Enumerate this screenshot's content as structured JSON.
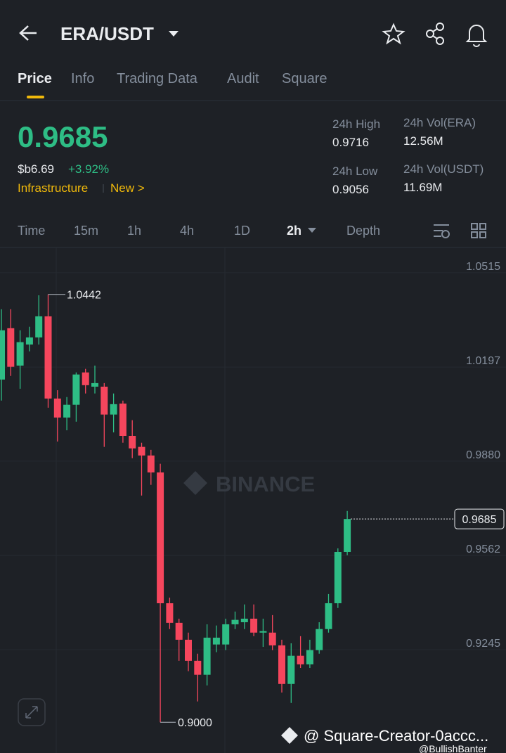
{
  "header": {
    "pair": "ERA/USDT"
  },
  "tabs": [
    "Price",
    "Info",
    "Trading Data",
    "Audit",
    "Square"
  ],
  "ticker": {
    "price": "0.9685",
    "usd_price": "$b6.69",
    "change": "+3.92%",
    "tags": [
      "Infrastructure",
      "New >"
    ]
  },
  "stats": [
    {
      "label": "24h High",
      "value": "0.9716"
    },
    {
      "label": "24h Vol(ERA)",
      "value": "12.56M"
    },
    {
      "label": "24h Low",
      "value": "0.9056"
    },
    {
      "label": "24h Vol(USDT)",
      "value": "11.69M"
    }
  ],
  "intervals": [
    "Time",
    "15m",
    "1h",
    "4h",
    "1D",
    "2h",
    "Depth"
  ],
  "chart_data": {
    "type": "candlestick",
    "up_color": "#2ebd85",
    "down_color": "#f6465d",
    "open": [
      1.0155,
      1.0328,
      1.0202,
      1.0273,
      1.0297,
      1.0368,
      1.0091,
      1.0027,
      1.007,
      1.0179,
      1.0131,
      1.0131,
      1.0037,
      1.0074,
      0.9965,
      0.9928,
      0.9899,
      0.9842,
      0.9401,
      0.9335,
      0.9278,
      0.9207,
      0.916,
      0.9262,
      0.9262,
      0.933,
      0.9337,
      0.9349,
      0.9302,
      0.9302,
      0.9259,
      0.9129,
      0.9224,
      0.9195,
      0.9243,
      0.9314,
      0.9401,
      0.9574
    ],
    "high": [
      1.0392,
      1.0392,
      1.0321,
      1.0333,
      1.0439,
      1.0442,
      1.0119,
      1.0096,
      1.0179,
      1.0191,
      1.0202,
      1.0143,
      1.0108,
      1.0084,
      1.0018,
      0.9942,
      0.9918,
      0.9871,
      0.942,
      0.9349,
      0.9302,
      0.9231,
      0.933,
      0.9326,
      0.9349,
      0.9373,
      0.9397,
      0.9397,
      0.9349,
      0.9361,
      0.9278,
      0.9266,
      0.929,
      0.9278,
      0.9337,
      0.9432,
      0.9586,
      0.9712
    ],
    "low": [
      1.0084,
      1.0167,
      1.0124,
      1.025,
      1.0273,
      1.006,
      0.9946,
      0.9984,
      1.0013,
      1.0108,
      1.0108,
      0.9928,
      0.9977,
      0.9942,
      0.989,
      0.9764,
      0.98,
      0.9,
      0.9314,
      0.9207,
      0.9172,
      0.907,
      0.9124,
      0.9236,
      0.9243,
      0.9314,
      0.9314,
      0.929,
      0.9254,
      0.9243,
      0.91,
      0.9065,
      0.9183,
      0.9183,
      0.9231,
      0.9302,
      0.9385,
      0.9563
    ],
    "close": [
      1.0321,
      1.0198,
      1.0281,
      1.0297,
      1.0368,
      1.0091,
      1.0027,
      1.007,
      1.0172,
      1.0136,
      1.0143,
      1.0037,
      1.0072,
      0.9965,
      0.9923,
      0.9899,
      0.9842,
      0.9401,
      0.9335,
      0.9278,
      0.9207,
      0.916,
      0.9285,
      0.9285,
      0.933,
      0.9345,
      0.9349,
      0.9302,
      0.9307,
      0.9259,
      0.9129,
      0.9224,
      0.9195,
      0.9243,
      0.9314,
      0.9401,
      0.9574,
      0.9685
    ],
    "ylim": [
      0.8946,
      1.0593
    ],
    "yticks": [
      1.0515,
      1.0197,
      {
        "value": 0.988,
        "label": "0.9880"
      },
      0.9562,
      0.9245
    ],
    "grid": true,
    "high_marker": 1.0442,
    "low_marker": {
      "value": 0.9,
      "label": "0.9000"
    },
    "last_price": 0.9685,
    "watermark": "BINANCE"
  },
  "footer": {
    "creator": "@ Square-Creator-0accc...",
    "author": "@BullishBanter"
  }
}
